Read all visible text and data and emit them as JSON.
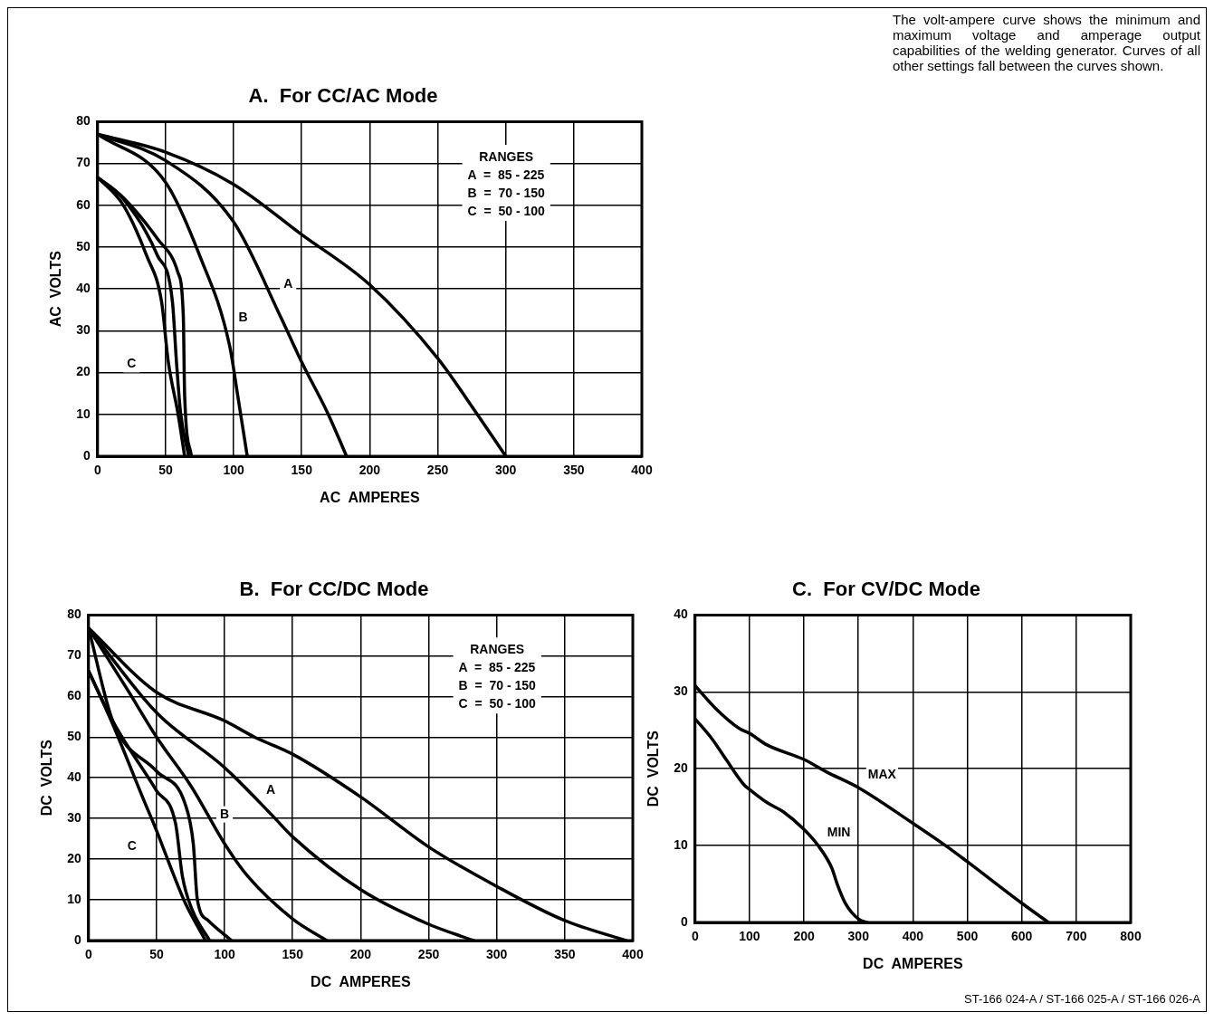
{
  "chart_data": [
    {
      "type": "line",
      "title": "A.  For CC/AC Mode",
      "xlabel": "AC  AMPERES",
      "ylabel": "AC  VOLTS",
      "xlim": [
        0,
        400
      ],
      "ylim": [
        0,
        80
      ],
      "xticks": [
        0,
        50,
        100,
        150,
        200,
        250,
        300,
        350,
        400
      ],
      "yticks": [
        0,
        10,
        20,
        30,
        40,
        50,
        60,
        70,
        80
      ],
      "grid": true,
      "series": [
        {
          "color": "#000000",
          "x": [
            0,
            50,
            100,
            150,
            200,
            250,
            277,
            300
          ],
          "values": [
            77,
            72.7,
            65,
            53,
            41,
            23.4,
            11,
            0
          ]
        },
        {
          "color": "#000000",
          "x": [
            0,
            50,
            100,
            135,
            150,
            169,
            183
          ],
          "values": [
            77,
            70.7,
            56,
            33,
            22.5,
            10.4,
            0
          ]
        },
        {
          "color": "#000000",
          "x": [
            0,
            50,
            75,
            97,
            103,
            110
          ],
          "values": [
            77,
            65.5,
            48,
            26.5,
            14.5,
            0
          ]
        },
        {
          "color": "#000000",
          "x": [
            0,
            19,
            44,
            59,
            63,
            64,
            69
          ],
          "values": [
            66.7,
            61.8,
            52,
            44,
            33.7,
            14.5,
            0
          ]
        },
        {
          "color": "#000000",
          "x": [
            0,
            19,
            44,
            55,
            58,
            61,
            67
          ],
          "values": [
            66.7,
            61.5,
            48,
            37,
            22.5,
            10.4,
            0
          ]
        },
        {
          "color": "#000000",
          "x": [
            0,
            19,
            36,
            47,
            52,
            59,
            64
          ],
          "values": [
            66.7,
            60,
            48,
            37,
            22.5,
            10.4,
            0
          ]
        }
      ],
      "annotations": [
        "RANGES",
        "A  =  85 - 225",
        "B  =  70 - 150",
        "C  =  50 - 100",
        {
          "text": "A",
          "x": 140,
          "y": 41
        },
        {
          "text": "B",
          "x": 107,
          "y": 33
        },
        {
          "text": "C",
          "x": 25,
          "y": 22
        }
      ]
    },
    {
      "type": "line",
      "title": "B.  For CC/DC Mode",
      "xlabel": "DC  AMPERES",
      "ylabel": "DC  VOLTS",
      "xlim": [
        0,
        400
      ],
      "ylim": [
        0,
        80
      ],
      "xticks": [
        0,
        50,
        100,
        150,
        200,
        250,
        300,
        350,
        400
      ],
      "yticks": [
        0,
        10,
        20,
        30,
        40,
        50,
        60,
        70,
        80
      ],
      "grid": true,
      "series": [
        {
          "color": "#000000",
          "x": [
            0,
            50,
            100,
            122,
            150,
            200,
            250,
            300,
            350,
            395
          ],
          "values": [
            76.8,
            61,
            54,
            50,
            45.8,
            35.3,
            23,
            13.3,
            4.9,
            0
          ]
        },
        {
          "color": "#000000",
          "x": [
            0,
            50,
            100,
            136,
            150,
            200,
            250,
            283
          ],
          "values": [
            76.8,
            56,
            42.5,
            30.4,
            25.5,
            12.5,
            4,
            0
          ]
        },
        {
          "color": "#000000",
          "x": [
            0,
            28,
            50,
            76,
            100,
            117,
            150,
            175
          ],
          "values": [
            76.8,
            62,
            50,
            37.6,
            23.8,
            15.8,
            5.3,
            0
          ]
        },
        {
          "color": "#000000",
          "x": [
            0,
            18,
            50,
            71,
            77,
            80,
            88,
            105
          ],
          "values": [
            76.8,
            53.8,
            41.6,
            33.6,
            23.8,
            10,
            4.9,
            0
          ]
        },
        {
          "color": "#000000",
          "x": [
            0,
            18,
            50,
            64,
            69,
            76,
            89
          ],
          "values": [
            66.3,
            53.8,
            36.8,
            28.7,
            15.8,
            7.7,
            0
          ]
        },
        {
          "color": "#000000",
          "x": [
            0,
            18,
            40,
            50,
            62,
            71,
            86
          ],
          "values": [
            66.3,
            53,
            35,
            27,
            16.6,
            9.3,
            0
          ]
        }
      ],
      "annotations": [
        "RANGES",
        "A  =  85 - 225",
        "B  =  70 - 150",
        "C  =  50 - 100",
        {
          "text": "A",
          "x": 134,
          "y": 37
        },
        {
          "text": "B",
          "x": 100,
          "y": 31
        },
        {
          "text": "C",
          "x": 32,
          "y": 23
        }
      ]
    },
    {
      "type": "line",
      "title": "C.  For CV/DC Mode",
      "xlabel": "DC  AMPERES",
      "ylabel": "DC  VOLTS",
      "xlim": [
        0,
        800
      ],
      "ylim": [
        0,
        40
      ],
      "xticks": [
        0,
        100,
        200,
        300,
        400,
        500,
        600,
        700,
        800
      ],
      "yticks": [
        0,
        10,
        20,
        30,
        40
      ],
      "grid": true,
      "series": [
        {
          "name": "MAX",
          "color": "#000000",
          "x": [
            0,
            37,
            82,
            100,
            132,
            200,
            241,
            301,
            400,
            460,
            500,
            600,
            649
          ],
          "values": [
            30.8,
            27.9,
            25.2,
            24.6,
            23.1,
            21.2,
            19.6,
            17.5,
            12.9,
            10,
            7.9,
            2.5,
            0
          ]
        },
        {
          "name": "MIN",
          "color": "#000000",
          "x": [
            0,
            32,
            57,
            90,
            100,
            132,
            162,
            200,
            226,
            251,
            261,
            276,
            301,
            316
          ],
          "values": [
            26.5,
            23.8,
            21.2,
            17.9,
            17.3,
            15.6,
            14.4,
            12.1,
            10,
            7.1,
            5,
            2.5,
            0.4,
            0
          ]
        }
      ],
      "annotations": [
        "The volt-ampere curve shows the minimum and maximum voltage and amperage output capabilities of the welding generator. Curves of all other settings fall between the curves shown.",
        "ST-166 024-A / ST-166 025-A / ST-166 026-A"
      ]
    }
  ]
}
